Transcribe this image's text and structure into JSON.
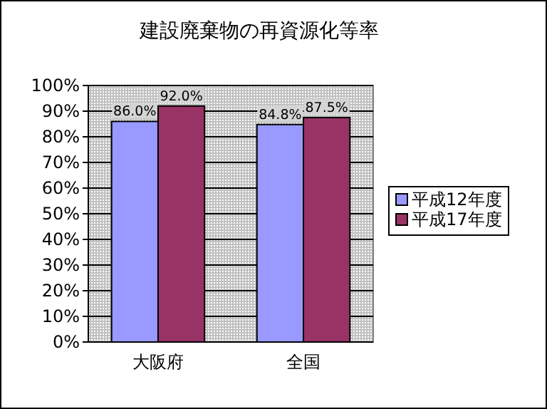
{
  "chart_data": {
    "type": "bar",
    "title": "建設廃棄物の再資源化等率",
    "categories": [
      "大阪府",
      "全国"
    ],
    "series": [
      {
        "name": "平成12年度",
        "color": "#9999ff",
        "values": [
          86.0,
          84.8
        ],
        "value_labels": [
          "86.0%",
          "84.8%"
        ]
      },
      {
        "name": "平成17年度",
        "color": "#993366",
        "values": [
          92.0,
          87.5
        ],
        "value_labels": [
          "92.0%",
          "87.5%"
        ]
      }
    ],
    "ylim": [
      0,
      100
    ],
    "yticks": [
      {
        "value": 0,
        "label": "0%"
      },
      {
        "value": 10,
        "label": "10%"
      },
      {
        "value": 20,
        "label": "20%"
      },
      {
        "value": 30,
        "label": "30%"
      },
      {
        "value": 40,
        "label": "40%"
      },
      {
        "value": 50,
        "label": "50%"
      },
      {
        "value": 60,
        "label": "60%"
      },
      {
        "value": 70,
        "label": "70%"
      },
      {
        "value": 80,
        "label": "80%"
      },
      {
        "value": 90,
        "label": "90%"
      },
      {
        "value": 100,
        "label": "100%"
      }
    ],
    "grid": "y",
    "legend": "right"
  }
}
